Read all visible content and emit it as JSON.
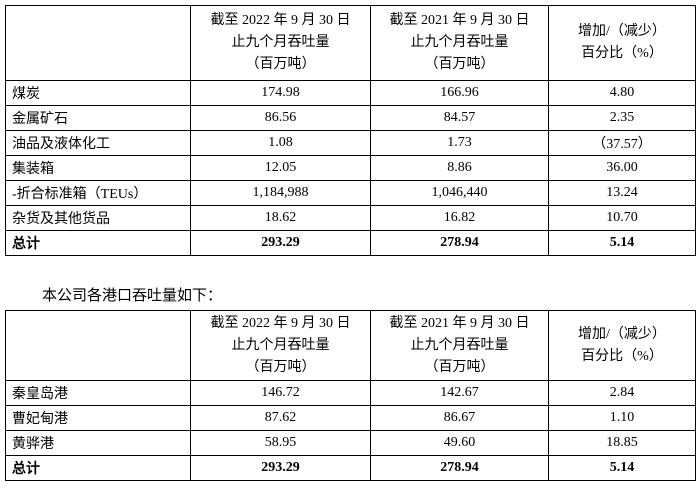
{
  "table1": {
    "header": [
      {
        "lines": [
          "截至 2022 年 9 月 30 日",
          "止九个月吞吐量",
          "（百万吨）"
        ]
      },
      {
        "lines": [
          "截至 2021 年 9 月 30 日",
          "止九个月吞吐量",
          "（百万吨）"
        ]
      },
      {
        "lines": [
          "增加/（减少）",
          "百分比（%）"
        ]
      }
    ],
    "rows": [
      [
        "煤炭",
        "174.98",
        "166.96",
        "4.80"
      ],
      [
        "金属矿石",
        "86.56",
        "84.57",
        "2.35"
      ],
      [
        "油品及液体化工",
        "1.08",
        "1.73",
        "（37.57）"
      ],
      [
        "集装箱",
        "12.05",
        "8.86",
        "36.00"
      ],
      [
        "-折合标准箱（TEUs）",
        "1,184,988",
        "1,046,440",
        "13.24"
      ],
      [
        "杂货及其他货品",
        "18.62",
        "16.82",
        "10.70"
      ],
      [
        "总计",
        "293.29",
        "278.94",
        "5.14"
      ]
    ]
  },
  "intro": "本公司各港口吞吐量如下：",
  "table2": {
    "header": [
      {
        "lines": [
          "截至 2022 年 9 月 30 日",
          "止九个月吞吐量",
          "（百万吨）"
        ]
      },
      {
        "lines": [
          "截至 2021 年 9 月 30 日",
          "止九个月吞吐量",
          "（百万吨）"
        ]
      },
      {
        "lines": [
          "增加/（减少）",
          "百分比（%）"
        ]
      }
    ],
    "rows": [
      [
        "秦皇岛港",
        "146.72",
        "142.67",
        "2.84"
      ],
      [
        "曹妃甸港",
        "87.62",
        "86.67",
        "1.10"
      ],
      [
        "黄骅港",
        "58.95",
        "49.60",
        "18.85"
      ],
      [
        "总计",
        "293.29",
        "278.94",
        "5.14"
      ]
    ]
  }
}
